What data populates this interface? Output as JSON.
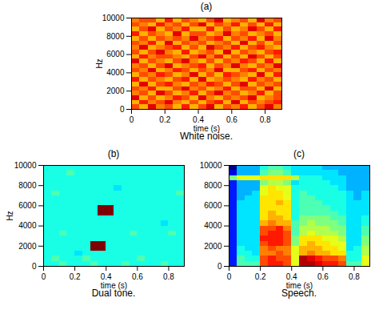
{
  "chart_data": [
    {
      "type": "heatmap",
      "title": "(a)",
      "caption": "White noise.",
      "x_label": "time (s)",
      "y_label": "Hz",
      "xlim": [
        0,
        0.9
      ],
      "xticks": [
        0,
        0.2,
        0.4,
        0.6,
        0.8
      ],
      "ylim": [
        0,
        10000
      ],
      "yticks": [
        0,
        2000,
        4000,
        6000,
        8000,
        10000
      ],
      "xbins": [
        0,
        0.05,
        0.1,
        0.15,
        0.2,
        0.25,
        0.3,
        0.35,
        0.4,
        0.45,
        0.5,
        0.55,
        0.6,
        0.65,
        0.7,
        0.75,
        0.8,
        0.85,
        0.9
      ],
      "ybins": [
        0,
        500,
        1000,
        1500,
        2000,
        2500,
        3000,
        3500,
        4000,
        4500,
        5000,
        5500,
        6000,
        6500,
        7000,
        7500,
        8000,
        8500,
        9000,
        9500,
        10000
      ],
      "cells": [
        [
          8,
          7,
          9,
          7.5,
          8,
          7,
          8.5,
          7,
          8,
          9,
          7,
          8,
          7.5,
          8.5,
          7,
          8,
          9,
          7.5
        ],
        [
          7,
          8.5,
          7.5,
          8,
          9,
          7.5,
          7,
          8,
          7,
          8,
          8.5,
          7,
          9,
          7,
          8,
          7.5,
          8,
          8.5
        ],
        [
          9,
          7,
          8,
          7,
          7.5,
          8.5,
          8,
          7,
          9,
          7.5,
          7,
          8,
          7.5,
          8,
          9,
          7,
          7.5,
          8
        ],
        [
          7.5,
          8,
          7,
          9,
          8,
          7,
          7.5,
          8.5,
          7,
          8,
          9,
          7.5,
          8,
          7,
          7.5,
          8.5,
          7,
          8
        ],
        [
          8,
          7.5,
          8.5,
          7,
          7,
          8,
          9,
          7.5,
          8,
          7,
          7.5,
          8.5,
          7,
          8,
          8,
          7,
          9,
          7
        ],
        [
          7,
          9,
          7,
          8,
          8.5,
          7.5,
          7,
          8,
          7.5,
          8.5,
          8,
          7,
          8,
          9,
          7,
          8,
          7.5,
          8
        ],
        [
          8.5,
          7,
          8,
          7.5,
          7,
          8,
          8.5,
          7,
          9,
          7,
          7.5,
          8,
          7.5,
          7,
          8.5,
          7.5,
          8,
          7
        ],
        [
          7,
          8,
          7.5,
          8.5,
          8,
          7,
          7.5,
          9,
          7,
          8,
          7,
          8.5,
          8,
          7.5,
          7,
          9,
          7,
          8.5
        ],
        [
          8,
          7.5,
          9,
          7,
          7.5,
          8.5,
          8,
          7,
          8,
          7.5,
          9,
          7,
          7,
          8,
          8.5,
          7,
          8,
          7.5
        ],
        [
          7.5,
          8,
          7,
          8,
          9,
          7,
          7.5,
          8,
          8.5,
          7,
          8,
          7.5,
          9,
          7.5,
          7,
          8,
          7.5,
          9
        ],
        [
          9,
          7,
          8,
          7.5,
          7,
          8,
          9,
          7.5,
          7,
          8,
          7,
          8,
          7.5,
          8.5,
          8,
          7,
          8.5,
          7
        ],
        [
          7,
          8.5,
          7.5,
          8,
          8,
          7.5,
          7,
          8,
          9,
          7.5,
          8.5,
          7,
          8,
          7,
          9,
          8,
          7,
          8
        ],
        [
          8,
          7,
          8,
          9,
          7.5,
          7,
          8.5,
          7,
          7.5,
          8,
          7,
          9,
          7,
          8,
          7.5,
          7,
          8,
          8.5
        ],
        [
          7.5,
          9,
          7,
          7.5,
          8,
          8.5,
          7,
          8,
          7,
          9,
          8,
          7.5,
          8.5,
          7,
          8,
          8.5,
          7.5,
          7
        ],
        [
          8,
          7.5,
          8.5,
          7,
          9,
          7,
          8,
          7.5,
          8,
          7,
          7.5,
          8,
          7,
          9,
          7,
          8,
          7,
          8
        ],
        [
          7,
          8,
          7,
          8,
          7.5,
          8,
          7.5,
          9,
          7.5,
          8,
          8.5,
          7,
          8,
          7.5,
          8.5,
          7,
          9,
          7.5
        ],
        [
          8.5,
          7,
          8,
          7.5,
          7,
          9,
          7,
          8,
          8,
          7,
          7.5,
          9,
          7.5,
          8,
          7,
          7.5,
          8,
          7
        ],
        [
          7,
          8,
          9,
          7,
          8,
          7.5,
          8.5,
          7,
          7,
          8.5,
          7,
          8,
          7,
          7.5,
          9,
          8,
          7,
          8.5
        ],
        [
          8,
          7.5,
          7,
          8.5,
          7.5,
          8,
          7,
          8,
          9,
          7,
          8,
          7.5,
          8.5,
          7,
          8,
          7,
          8.5,
          7
        ],
        [
          7.5,
          8,
          8,
          7,
          8.5,
          7,
          8,
          7.5,
          7,
          8,
          9,
          7,
          7.5,
          8,
          7,
          9,
          7.5,
          8
        ]
      ]
    },
    {
      "type": "heatmap",
      "title": "(b)",
      "caption": "Dual tone.",
      "x_label": "time (s)",
      "y_label": "Hz",
      "xlim": [
        0,
        0.9
      ],
      "xticks": [
        0,
        0.2,
        0.4,
        0.6,
        0.8
      ],
      "ylim": [
        0,
        10000
      ],
      "yticks": [
        0,
        2000,
        4000,
        6000,
        8000,
        10000
      ],
      "xbins": [
        0,
        0.05,
        0.1,
        0.15,
        0.2,
        0.25,
        0.3,
        0.35,
        0.4,
        0.45,
        0.5,
        0.55,
        0.6,
        0.65,
        0.7,
        0.75,
        0.8,
        0.85,
        0.9
      ],
      "ybins": [
        0,
        500,
        1000,
        1500,
        2000,
        2500,
        3000,
        3500,
        4000,
        4500,
        5000,
        5500,
        6000,
        6500,
        7000,
        7500,
        8000,
        8500,
        9000,
        9500,
        10000
      ],
      "cells": [
        [
          4,
          4,
          4.5,
          4,
          4,
          4,
          4.5,
          4,
          4,
          4,
          4.5,
          4,
          4,
          4,
          4,
          4.5,
          4,
          4
        ],
        [
          4,
          4.5,
          4,
          4,
          4,
          4.5,
          4,
          4,
          4,
          4,
          4,
          4,
          4.5,
          4,
          4,
          4,
          4,
          4
        ],
        [
          4,
          4,
          4,
          4,
          3.5,
          4,
          4,
          4,
          4,
          4,
          4,
          4,
          4,
          4,
          4,
          4,
          4,
          4
        ],
        [
          4,
          4,
          4,
          4,
          4,
          4,
          10,
          10,
          4,
          4,
          4,
          4,
          4,
          4,
          4,
          4,
          4,
          4
        ],
        [
          4,
          4,
          4,
          4,
          4,
          4,
          10,
          10,
          4,
          4,
          4,
          4,
          4,
          4,
          4,
          4,
          4,
          4
        ],
        [
          4,
          4,
          4,
          4,
          4,
          4,
          4,
          4,
          4,
          4,
          4,
          4,
          4,
          4,
          4,
          4,
          4,
          4
        ],
        [
          4,
          4,
          4.5,
          4,
          4,
          4,
          4,
          4,
          4,
          4,
          4,
          4.5,
          4,
          4,
          4,
          4,
          4.5,
          4
        ],
        [
          4,
          4,
          4,
          4,
          4,
          4,
          4,
          4,
          4,
          4,
          4,
          4,
          4,
          4,
          4,
          4,
          4,
          4
        ],
        [
          4,
          4,
          4,
          4,
          4,
          4,
          4,
          4,
          4,
          4,
          4,
          4,
          4,
          4,
          4,
          3.5,
          4,
          4
        ],
        [
          4,
          4,
          4,
          4,
          4,
          4,
          4,
          4,
          4,
          4,
          4,
          4,
          4,
          4,
          4,
          4,
          4,
          4
        ],
        [
          4,
          4,
          4,
          4,
          4,
          4,
          4,
          10,
          10,
          4,
          4,
          4,
          4,
          4,
          4,
          4,
          4,
          4
        ],
        [
          4,
          4,
          4,
          4,
          4,
          4,
          4,
          10,
          10,
          4,
          4,
          4,
          4,
          4,
          4,
          4,
          4,
          4
        ],
        [
          4,
          4,
          4,
          4,
          4,
          4,
          4,
          4,
          4,
          4,
          4,
          4,
          4,
          4,
          4,
          4,
          4,
          4
        ],
        [
          4,
          4,
          4,
          4,
          4,
          4,
          4,
          4,
          4,
          4,
          4,
          4,
          4,
          4,
          4,
          4,
          4,
          4
        ],
        [
          4,
          4.5,
          4,
          4,
          4,
          4,
          4,
          4,
          4,
          4,
          4,
          4,
          4,
          4,
          4,
          4,
          4,
          4.5
        ],
        [
          4,
          4,
          4,
          4,
          4,
          4,
          4,
          4,
          4,
          3.5,
          4,
          4,
          4,
          4,
          4,
          4,
          4,
          4
        ],
        [
          4,
          4,
          4,
          4,
          4,
          4,
          4,
          4,
          4,
          4,
          4,
          4,
          4,
          4,
          4,
          4,
          4,
          4
        ],
        [
          4,
          4,
          4,
          4,
          4,
          4,
          4,
          4,
          4,
          4,
          4,
          4,
          4,
          4,
          4,
          4,
          4,
          4
        ],
        [
          4,
          4,
          4,
          4.5,
          4,
          4,
          4,
          4,
          4,
          4,
          4,
          4,
          4,
          4,
          4,
          4,
          4,
          4
        ],
        [
          4,
          4,
          4,
          4,
          4,
          4,
          4,
          4,
          4,
          4,
          4,
          4,
          4,
          4,
          4,
          4,
          4,
          4
        ]
      ]
    },
    {
      "type": "heatmap",
      "title": "(c)",
      "caption": "Speech.",
      "x_label": "time (s)",
      "xlim": [
        0,
        0.9
      ],
      "xticks": [
        0,
        0.2,
        0.4,
        0.6,
        0.8
      ],
      "ylim": [
        0,
        10000
      ],
      "yticks": [
        0,
        2000,
        4000,
        6000,
        8000,
        10000
      ],
      "xbins": [
        0,
        0.05,
        0.1,
        0.15,
        0.2,
        0.25,
        0.3,
        0.35,
        0.4,
        0.45,
        0.5,
        0.55,
        0.6,
        0.65,
        0.7,
        0.75,
        0.8,
        0.85,
        0.9
      ],
      "ybins": [
        0,
        500,
        1000,
        1500,
        2000,
        2500,
        3000,
        3500,
        4000,
        4500,
        5000,
        5500,
        6000,
        6500,
        7000,
        7500,
        8000,
        8500,
        9000,
        9500,
        10000
      ],
      "cells": [
        [
          1.5,
          4.5,
          4.5,
          4.5,
          8,
          8.5,
          8.5,
          8,
          6,
          9.5,
          9.5,
          9,
          8.5,
          8.5,
          8,
          4.5,
          4.5,
          6
        ],
        [
          1.5,
          4.5,
          4,
          4,
          8,
          8.5,
          8,
          8,
          6,
          9.5,
          9,
          8.5,
          8,
          8,
          7.5,
          4,
          4,
          6
        ],
        [
          1.5,
          4,
          4,
          3.5,
          7.5,
          7.5,
          8,
          7.5,
          6,
          7,
          7.5,
          7,
          7,
          6.5,
          6.5,
          4,
          4,
          5.5
        ],
        [
          1.5,
          4,
          3.5,
          3.5,
          7.5,
          8,
          7.5,
          7.5,
          6,
          7,
          7,
          7,
          6.5,
          6.5,
          6,
          3.5,
          4,
          5.5
        ],
        [
          1.5,
          3.5,
          3.5,
          3.5,
          8,
          8.5,
          8.5,
          8,
          5,
          6.5,
          7,
          6.5,
          6.5,
          6,
          6,
          3.5,
          3.5,
          5
        ],
        [
          1.5,
          3.5,
          3.5,
          3.5,
          8.5,
          8.5,
          8.5,
          8,
          5,
          6.5,
          6.5,
          6.5,
          6,
          6,
          5.5,
          3.5,
          3.5,
          5
        ],
        [
          1.5,
          3.5,
          3.5,
          3.5,
          8,
          8.5,
          8.5,
          8,
          4.5,
          5.5,
          6,
          5.5,
          5.5,
          5.5,
          5,
          3.5,
          3.5,
          4.5
        ],
        [
          1.5,
          3.5,
          3.5,
          3.5,
          8,
          8,
          8.5,
          7.5,
          4.5,
          5.5,
          5.5,
          5.5,
          5.5,
          5,
          5,
          3.5,
          3.5,
          4.5
        ],
        [
          1.5,
          3.5,
          3.5,
          3.5,
          7,
          7.5,
          7,
          7,
          4.5,
          5,
          5.5,
          5,
          5,
          5,
          4.5,
          3.5,
          3.5,
          4
        ],
        [
          1.5,
          3.5,
          3.5,
          3.5,
          6.5,
          7,
          7,
          6.5,
          4,
          5,
          5,
          5,
          5,
          4.5,
          4.5,
          3.5,
          3.5,
          4
        ],
        [
          1.5,
          3.5,
          3.5,
          3.5,
          6.5,
          7,
          6.5,
          6.5,
          4,
          4.5,
          4.5,
          4.5,
          4.5,
          4.5,
          4,
          3.5,
          3.5,
          3.5
        ],
        [
          1.5,
          3.5,
          3.5,
          3.5,
          6.5,
          6.5,
          6.5,
          6.5,
          4,
          4.5,
          4.5,
          4.5,
          4.5,
          4,
          4,
          3.5,
          3.5,
          3.5
        ],
        [
          1.5,
          3.5,
          3.5,
          3.5,
          6.5,
          6.5,
          7,
          6.5,
          4,
          4.5,
          4.5,
          4.5,
          4,
          4,
          4,
          3.5,
          3.5,
          3.5
        ],
        [
          1.5,
          3,
          3.5,
          3.5,
          6.5,
          6.5,
          6.5,
          6,
          4,
          4.5,
          4.5,
          4,
          4,
          4,
          4,
          3.5,
          3,
          3.5
        ],
        [
          1.5,
          3,
          3,
          3.5,
          6,
          6.5,
          6.5,
          6,
          4,
          4.5,
          4,
          4,
          4,
          4,
          4,
          3.5,
          3,
          3.5
        ],
        [
          1.5,
          3,
          3,
          3,
          6,
          6.5,
          6,
          6,
          4,
          4,
          4,
          4,
          4,
          4,
          3.5,
          3,
          3,
          3
        ],
        [
          1.5,
          3,
          3,
          3,
          5,
          5.5,
          5.5,
          5,
          3.5,
          4,
          4,
          4,
          4,
          3.5,
          3.5,
          3,
          3,
          3
        ],
        [
          5,
          6,
          6,
          6,
          6.5,
          6.5,
          6.5,
          6.5,
          5.5,
          4,
          4,
          4,
          3.5,
          3.5,
          3.5,
          3,
          3,
          3
        ],
        [
          1,
          3,
          3,
          3,
          4.5,
          5,
          5,
          4.5,
          3.5,
          3.5,
          3.5,
          3.5,
          3.5,
          3.5,
          3,
          3,
          3,
          3
        ],
        [
          0,
          3,
          3,
          3,
          4,
          4.5,
          4.5,
          4,
          3.5,
          3.5,
          3.5,
          3.5,
          3,
          3,
          3,
          3,
          3,
          3
        ]
      ]
    }
  ]
}
